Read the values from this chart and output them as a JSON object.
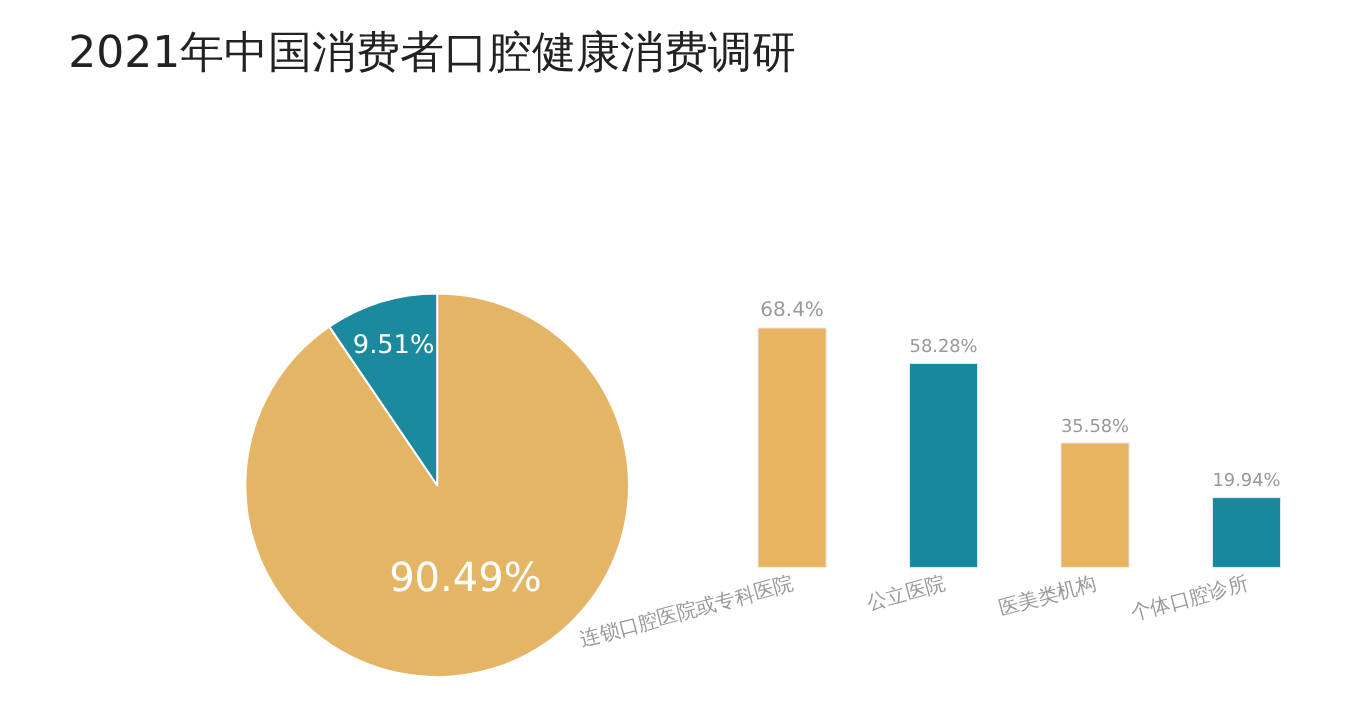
{
  "chart_data": [
    {
      "type": "pie",
      "title": "2021年中国消费者口腔健康消费调研",
      "categories": [
        null,
        null
      ],
      "values": [
        90.49,
        9.51
      ],
      "colors": [
        "#e5b566",
        "#1b8a9e"
      ],
      "value_labels": [
        "90.49%",
        "9.51%"
      ]
    },
    {
      "type": "bar",
      "tick_labels": "x",
      "categories": [
        "连锁口腔医院或专科医院",
        "公立医院",
        "医美类机构",
        "个体口腔诊所"
      ],
      "values": [
        68.4,
        58.28,
        35.58,
        19.94
      ],
      "colors": [
        "#e8b462",
        "#1a889c",
        "#e8b462",
        "#1a889c"
      ],
      "value_labels": [
        "68.4%",
        "58.28%",
        "35.58%",
        "19.94%"
      ]
    }
  ]
}
